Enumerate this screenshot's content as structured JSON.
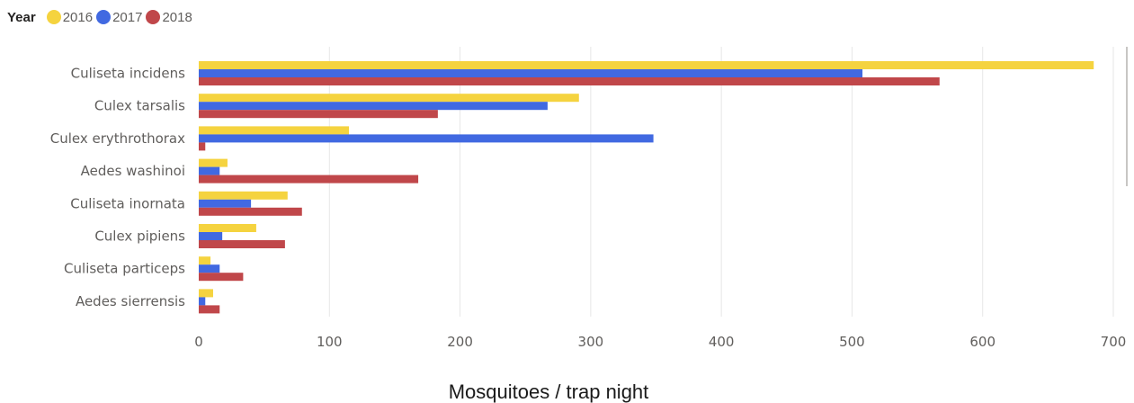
{
  "legend": {
    "title": "Year"
  },
  "chart_data": {
    "type": "bar",
    "orientation": "horizontal",
    "categories": [
      "Culiseta incidens",
      "Culex tarsalis",
      "Culex erythrothorax",
      "Aedes washinoi",
      "Culiseta inornata",
      "Culex pipiens",
      "Culiseta particeps",
      "Aedes sierrensis"
    ],
    "series": [
      {
        "name": "2016",
        "color": "#f5d33f",
        "values": [
          685,
          291,
          115,
          22,
          68,
          44,
          9,
          11
        ]
      },
      {
        "name": "2017",
        "color": "#4169e1",
        "values": [
          508,
          267,
          348,
          16,
          40,
          18,
          16,
          5
        ]
      },
      {
        "name": "2018",
        "color": "#c0474a",
        "values": [
          567,
          183,
          5,
          168,
          79,
          66,
          34,
          16
        ]
      }
    ],
    "xlabel": "Mosquitoes / trap night",
    "ylabel": "",
    "title": "",
    "xlim": [
      0,
      700
    ],
    "xticks": [
      0,
      100,
      200,
      300,
      400,
      500,
      600,
      700
    ],
    "grid": true,
    "legend_position": "top-left"
  }
}
